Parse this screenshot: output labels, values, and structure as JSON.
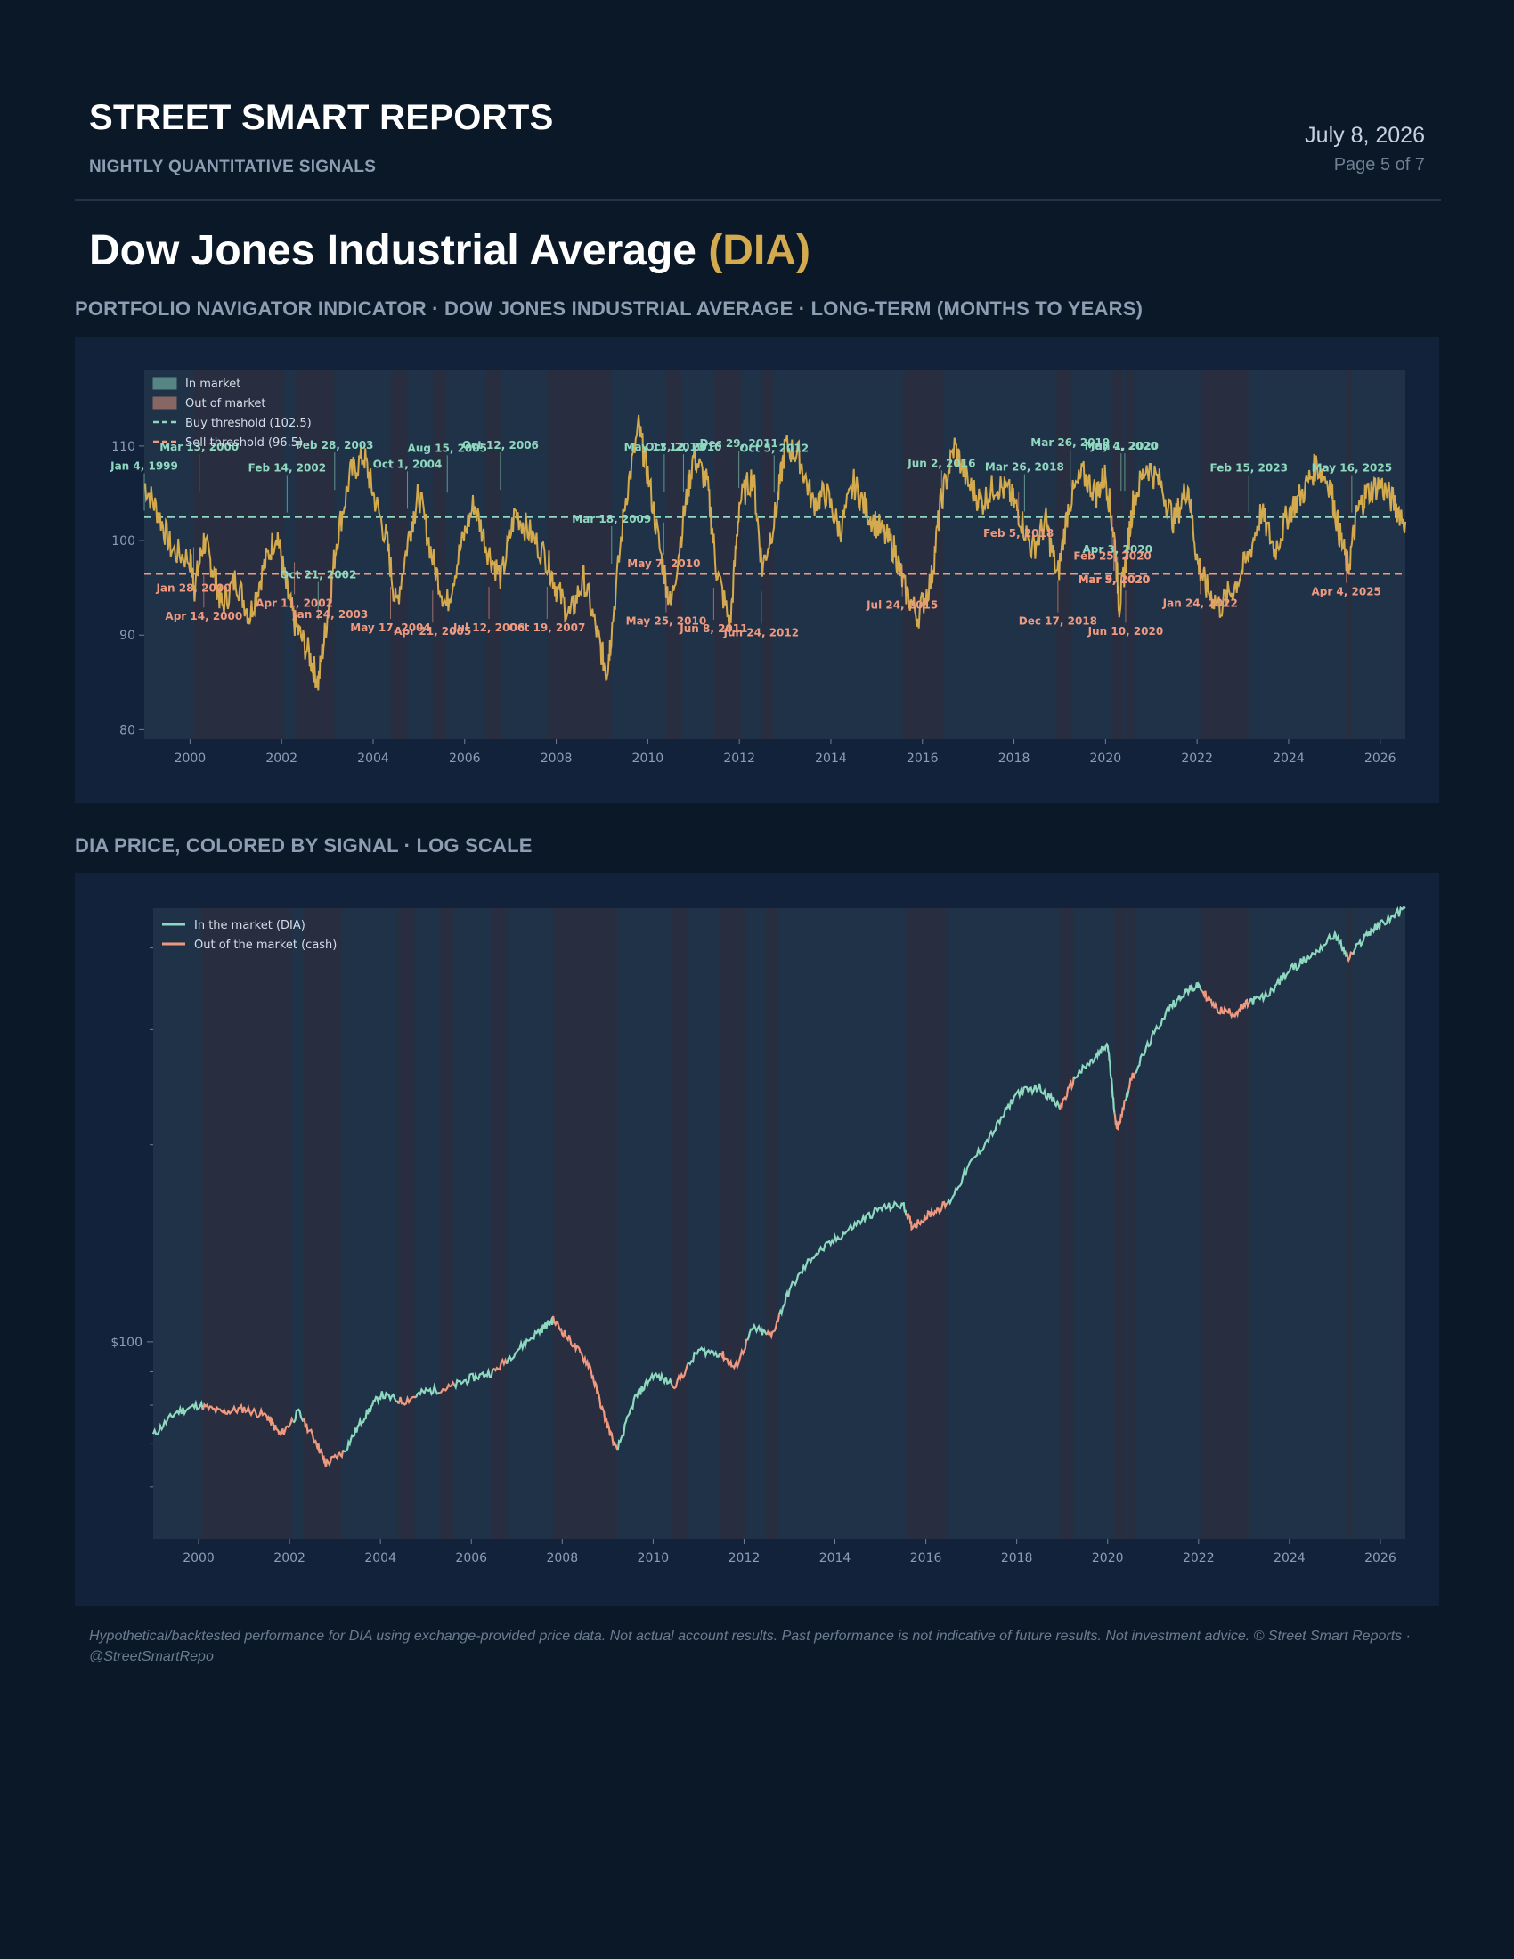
{
  "header": {
    "brand": "STREET SMART REPORTS",
    "tagline": "NIGHTLY QUANTITATIVE SIGNALS",
    "date": "July 8, 2026",
    "page": "Page 5 of 7"
  },
  "title": {
    "name": "Dow Jones Industrial Average",
    "ticker": "(DIA)"
  },
  "section1": "PORTFOLIO NAVIGATOR INDICATOR · DOW JONES INDUSTRIAL AVERAGE · LONG-TERM (MONTHS TO YEARS)",
  "section2": "DIA PRICE, COLORED BY SIGNAL · LOG SCALE",
  "disclaimer": "Hypothetical/backtested performance for DIA using exchange-provided price data. Not actual account results. Past performance is not indicative of future results. Not investment advice. © Street Smart Reports · @StreetSmartRepo",
  "colors": {
    "in_market": "#8fd8c0",
    "out_market": "#ef9a80",
    "indicator": "#d4aa4e",
    "background": "#0b1828",
    "plot_bg": "#1f3247"
  },
  "chart_data": [
    {
      "type": "line",
      "xlim": [
        1999.0,
        2026.55
      ],
      "ylim": [
        79,
        118
      ],
      "yticks": [
        80,
        90,
        100,
        110
      ],
      "xticks": [
        2000,
        2002,
        2004,
        2006,
        2008,
        2010,
        2012,
        2014,
        2016,
        2018,
        2020,
        2022,
        2024,
        2026
      ],
      "legend": {
        "position": "top-left",
        "entries": [
          "In market",
          "Out of market",
          "Buy threshold (102.5)",
          "Sell threshold (96.5)"
        ]
      },
      "thresholds": {
        "buy": 102.5,
        "sell": 96.5
      },
      "out_periods": [
        [
          2000.08,
          2002.05
        ],
        [
          2002.3,
          2003.15
        ],
        [
          2004.38,
          2004.75
        ],
        [
          2005.3,
          2005.6
        ],
        [
          2006.45,
          2006.78
        ],
        [
          2007.8,
          2009.2
        ],
        [
          2010.4,
          2010.75
        ],
        [
          2011.45,
          2012.05
        ],
        [
          2012.48,
          2012.75
        ],
        [
          2015.57,
          2016.45
        ],
        [
          2018.93,
          2019.25
        ],
        [
          2020.15,
          2020.38
        ],
        [
          2020.45,
          2020.62
        ],
        [
          2022.07,
          2023.12
        ],
        [
          2025.25,
          2025.38
        ]
      ],
      "series": [
        {
          "x": [
            1999.0,
            1999.3,
            1999.6,
            2000.0,
            2000.1,
            2000.3,
            2000.5,
            2000.7,
            2001.0,
            2001.3,
            2001.6,
            2001.9,
            2002.1,
            2002.3,
            2002.6,
            2002.8,
            2003.0,
            2003.2,
            2003.5,
            2003.8,
            2004.0,
            2004.3,
            2004.5,
            2004.8,
            2005.0,
            2005.3,
            2005.6,
            2005.9,
            2006.2,
            2006.5,
            2006.8,
            2007.1,
            2007.4,
            2007.8,
            2008.0,
            2008.3,
            2008.6,
            2008.9,
            2009.1,
            2009.2,
            2009.5,
            2009.8,
            2010.0,
            2010.3,
            2010.5,
            2010.8,
            2011.0,
            2011.3,
            2011.5,
            2011.8,
            2012.0,
            2012.3,
            2012.5,
            2012.8,
            2013.0,
            2013.3,
            2013.6,
            2013.9,
            2014.2,
            2014.5,
            2014.8,
            2015.1,
            2015.4,
            2015.6,
            2015.9,
            2016.2,
            2016.4,
            2016.7,
            2017.0,
            2017.3,
            2017.6,
            2017.9,
            2018.1,
            2018.4,
            2018.7,
            2018.95,
            2019.2,
            2019.5,
            2019.8,
            2020.0,
            2020.2,
            2020.3,
            2020.45,
            2020.6,
            2020.9,
            2021.2,
            2021.5,
            2021.8,
            2022.0,
            2022.2,
            2022.5,
            2022.8,
            2023.1,
            2023.4,
            2023.7,
            2024.0,
            2024.3,
            2024.6,
            2024.9,
            2025.1,
            2025.3,
            2025.5,
            2025.7,
            2026.0,
            2026.3,
            2026.55
          ],
          "y": [
            106,
            103,
            99,
            98,
            95,
            100,
            97,
            93,
            96,
            92,
            97,
            101,
            95,
            91,
            88,
            85,
            92,
            100,
            107,
            109,
            105,
            100,
            93,
            101,
            105,
            98,
            93,
            99,
            104,
            99,
            96,
            103,
            101,
            98,
            95,
            92,
            96,
            90,
            86,
            90,
            104,
            112,
            107,
            98,
            93,
            103,
            109,
            106,
            97,
            91,
            104,
            107,
            97,
            103,
            110,
            109,
            104,
            105,
            101,
            106,
            103,
            101,
            99,
            95,
            92,
            96,
            104,
            110,
            106,
            104,
            106,
            105,
            103,
            99,
            102,
            96,
            104,
            107,
            105,
            107,
            100,
            93,
            98,
            104,
            108,
            106,
            102,
            106,
            98,
            95,
            93,
            95,
            98,
            103,
            99,
            103,
            105,
            108,
            106,
            101,
            97,
            103,
            105,
            106,
            104,
            102
          ]
        }
      ],
      "annotations": [
        {
          "label": "Jan 4, 1999",
          "x": 1999.0,
          "y": 107.5,
          "signal": "buy"
        },
        {
          "label": "Mar 13, 2000",
          "x": 2000.2,
          "y": 109.5,
          "signal": "buy"
        },
        {
          "label": "Jan 28, 2000",
          "x": 2000.08,
          "y": 94.6,
          "signal": "sell"
        },
        {
          "label": "Apr 14, 2000",
          "x": 2000.3,
          "y": 91.6,
          "signal": "sell"
        },
        {
          "label": "Feb 14, 2002",
          "x": 2002.12,
          "y": 107.3,
          "signal": "buy"
        },
        {
          "label": "Oct 21, 2002",
          "x": 2002.8,
          "y": 96.0,
          "signal": "buy"
        },
        {
          "label": "Apr 11, 2002",
          "x": 2002.28,
          "y": 93.0,
          "signal": "sell"
        },
        {
          "label": "Jan 24, 2003",
          "x": 2003.07,
          "y": 91.8,
          "signal": "sell"
        },
        {
          "label": "Feb 28, 2003",
          "x": 2003.16,
          "y": 109.7,
          "signal": "buy"
        },
        {
          "label": "Oct 1, 2004",
          "x": 2004.75,
          "y": 107.7,
          "signal": "buy"
        },
        {
          "label": "May 17, 2004",
          "x": 2004.38,
          "y": 90.4,
          "signal": "sell"
        },
        {
          "label": "Apr 21, 2005",
          "x": 2005.3,
          "y": 90.0,
          "signal": "sell"
        },
        {
          "label": "Aug 15, 2005",
          "x": 2005.62,
          "y": 109.4,
          "signal": "buy"
        },
        {
          "label": "Jul 12, 2006",
          "x": 2006.53,
          "y": 90.4,
          "signal": "sell"
        },
        {
          "label": "Oct 12, 2006",
          "x": 2006.78,
          "y": 109.7,
          "signal": "buy"
        },
        {
          "label": "Oct 19, 2007",
          "x": 2007.8,
          "y": 90.4,
          "signal": "sell"
        },
        {
          "label": "Mar 18, 2009",
          "x": 2009.21,
          "y": 101.9,
          "signal": "buy"
        },
        {
          "label": "May 7, 2010",
          "x": 2010.35,
          "y": 97.2,
          "signal": "sell"
        },
        {
          "label": "May 25, 2010",
          "x": 2010.4,
          "y": 91.1,
          "signal": "sell"
        },
        {
          "label": "May 13, 2010",
          "x": 2010.36,
          "y": 109.5,
          "signal": "buy"
        },
        {
          "label": "Oct 12, 2010",
          "x": 2010.78,
          "y": 109.5,
          "signal": "buy"
        },
        {
          "label": "Dec 29, 2011",
          "x": 2011.99,
          "y": 109.9,
          "signal": "buy"
        },
        {
          "label": "Jun 8, 2011",
          "x": 2011.44,
          "y": 90.3,
          "signal": "sell"
        },
        {
          "label": "Jun 24, 2012",
          "x": 2012.48,
          "y": 89.9,
          "signal": "sell"
        },
        {
          "label": "Oct 5, 2012",
          "x": 2012.76,
          "y": 109.4,
          "signal": "buy"
        },
        {
          "label": "Jul 24, 2015",
          "x": 2015.56,
          "y": 92.8,
          "signal": "sell"
        },
        {
          "label": "Jun 2, 2016",
          "x": 2016.42,
          "y": 107.8,
          "signal": "buy"
        },
        {
          "label": "Mar 26, 2018",
          "x": 2018.23,
          "y": 107.4,
          "signal": "buy"
        },
        {
          "label": "Feb 5, 2018",
          "x": 2018.1,
          "y": 100.4,
          "signal": "sell"
        },
        {
          "label": "Dec 17, 2018",
          "x": 2018.96,
          "y": 91.1,
          "signal": "sell"
        },
        {
          "label": "Mar 26, 2019",
          "x": 2019.23,
          "y": 110.0,
          "signal": "buy"
        },
        {
          "label": "May 4, 2020",
          "x": 2020.34,
          "y": 109.6,
          "signal": "buy"
        },
        {
          "label": "Jun 1, 2020",
          "x": 2020.42,
          "y": 109.6,
          "signal": "buy"
        },
        {
          "label": "Apr 3, 2020",
          "x": 2020.26,
          "y": 98.7,
          "signal": "buy"
        },
        {
          "label": "Feb 25, 2020",
          "x": 2020.15,
          "y": 98.0,
          "signal": "sell"
        },
        {
          "label": "Mar 5, 2020",
          "x": 2020.18,
          "y": 95.5,
          "signal": "sell"
        },
        {
          "label": "Mar 9, 2020",
          "x": 2020.19,
          "y": 95.5,
          "signal": "sell"
        },
        {
          "label": "Jun 10, 2020",
          "x": 2020.44,
          "y": 90.0,
          "signal": "sell"
        },
        {
          "label": "Jan 24, 2022",
          "x": 2022.07,
          "y": 93.0,
          "signal": "sell"
        },
        {
          "label": "Feb 15, 2023",
          "x": 2023.13,
          "y": 107.3,
          "signal": "buy"
        },
        {
          "label": "Apr 4, 2025",
          "x": 2025.26,
          "y": 94.2,
          "signal": "sell"
        },
        {
          "label": "May 16, 2025",
          "x": 2025.38,
          "y": 107.3,
          "signal": "buy"
        }
      ]
    },
    {
      "type": "line",
      "scale": "log",
      "xlim": [
        1999.0,
        2026.55
      ],
      "ylim": [
        50,
        460
      ],
      "yticks": [
        100
      ],
      "ytick_labels": [
        "$100"
      ],
      "xticks": [
        2000,
        2002,
        2004,
        2006,
        2008,
        2010,
        2012,
        2014,
        2016,
        2018,
        2020,
        2022,
        2024,
        2026
      ],
      "legend": {
        "position": "top-left",
        "entries": [
          "In the market (DIA)",
          "Out of the market (cash)"
        ]
      },
      "out_periods": [
        [
          2000.08,
          2002.05
        ],
        [
          2002.3,
          2003.15
        ],
        [
          2004.38,
          2004.75
        ],
        [
          2005.3,
          2005.6
        ],
        [
          2006.45,
          2006.78
        ],
        [
          2007.8,
          2009.2
        ],
        [
          2010.4,
          2010.75
        ],
        [
          2011.45,
          2012.05
        ],
        [
          2012.48,
          2012.75
        ],
        [
          2015.57,
          2016.45
        ],
        [
          2018.93,
          2019.25
        ],
        [
          2020.15,
          2020.38
        ],
        [
          2020.45,
          2020.62
        ],
        [
          2022.07,
          2023.12
        ],
        [
          2025.25,
          2025.38
        ]
      ],
      "series": [
        {
          "x": [
            1999.0,
            1999.5,
            2000.0,
            2000.5,
            2001.0,
            2001.5,
            2001.8,
            2002.2,
            2002.6,
            2002.8,
            2003.2,
            2003.6,
            2004.0,
            2004.5,
            2005.0,
            2005.5,
            2006.0,
            2006.5,
            2007.0,
            2007.5,
            2007.8,
            2008.2,
            2008.6,
            2008.9,
            2009.2,
            2009.6,
            2010.0,
            2010.5,
            2011.0,
            2011.5,
            2011.8,
            2012.2,
            2012.6,
            2013.0,
            2013.5,
            2014.0,
            2014.5,
            2015.0,
            2015.5,
            2015.7,
            2016.1,
            2016.5,
            2017.0,
            2017.5,
            2018.0,
            2018.5,
            2018.95,
            2019.3,
            2019.7,
            2020.0,
            2020.2,
            2020.5,
            2020.9,
            2021.3,
            2021.7,
            2022.0,
            2022.4,
            2022.8,
            2023.1,
            2023.5,
            2024.0,
            2024.5,
            2025.0,
            2025.3,
            2025.7,
            2026.0,
            2026.55
          ],
          "y": [
            72,
            78,
            80,
            78,
            79,
            77,
            72,
            78,
            70,
            65,
            68,
            76,
            83,
            81,
            84,
            85,
            88,
            90,
            97,
            104,
            108,
            100,
            92,
            78,
            68,
            82,
            89,
            86,
            97,
            96,
            91,
            105,
            102,
            120,
            135,
            143,
            152,
            160,
            162,
            150,
            157,
            163,
            188,
            210,
            240,
            245,
            228,
            255,
            270,
            285,
            210,
            250,
            285,
            320,
            343,
            350,
            322,
            318,
            330,
            338,
            370,
            390,
            420,
            385,
            420,
            435,
            460
          ]
        }
      ]
    }
  ]
}
